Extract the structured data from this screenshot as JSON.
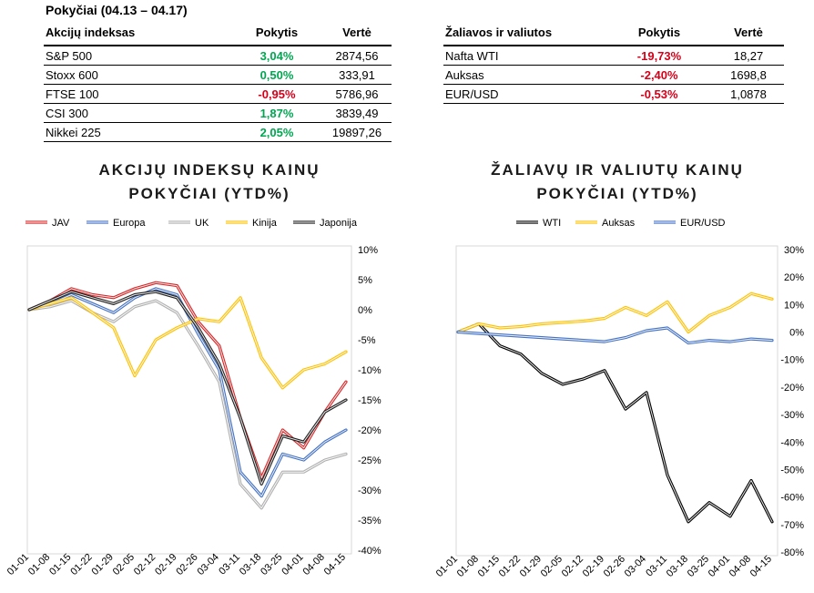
{
  "heading": "Pokyčiai (04.13 – 04.17)",
  "equity_table": {
    "headers": [
      "Akcijų indeksas",
      "Pokytis",
      "Vertė"
    ],
    "rows": [
      {
        "name": "S&P 500",
        "change": "3,04%",
        "value": "2874,56",
        "sign": "pos"
      },
      {
        "name": "Stoxx 600",
        "change": "0,50%",
        "value": "333,91",
        "sign": "pos"
      },
      {
        "name": "FTSE 100",
        "change": "-0,95%",
        "value": "5786,96",
        "sign": "neg"
      },
      {
        "name": "CSI 300",
        "change": "1,87%",
        "value": "3839,49",
        "sign": "pos"
      },
      {
        "name": "Nikkei 225",
        "change": "2,05%",
        "value": "19897,26",
        "sign": "pos"
      }
    ]
  },
  "commodity_table": {
    "headers": [
      "Žaliavos ir valiutos",
      "Pokytis",
      "Vertė"
    ],
    "rows": [
      {
        "name": "Nafta WTI",
        "change": "-19,73%",
        "value": "18,27",
        "sign": "neg"
      },
      {
        "name": "Auksas",
        "change": "-2,40%",
        "value": "1698,8",
        "sign": "neg"
      },
      {
        "name": "EUR/USD",
        "change": "-0,53%",
        "value": "1,0878",
        "sign": "neg"
      }
    ]
  },
  "colors": {
    "positive": "#00a651",
    "negative": "#d4001a"
  },
  "chart_data": [
    {
      "type": "line",
      "title": "AKCIJŲ INDEKSŲ KAINŲ POKYČIAI (YTD%)",
      "title_line1": "AKCIJŲ INDEKSŲ KAINŲ",
      "title_line2": "POKYČIAI (YTD%)",
      "x": [
        "01-01",
        "01-08",
        "01-15",
        "01-22",
        "01-29",
        "02-05",
        "02-12",
        "02-19",
        "02-26",
        "03-04",
        "03-11",
        "03-18",
        "03-25",
        "04-01",
        "04-08",
        "04-15"
      ],
      "ylim": [
        -40,
        10
      ],
      "yticks": [
        "10%",
        "5%",
        "0%",
        "-5%",
        "-10%",
        "-15%",
        "-20%",
        "-25%",
        "-30%",
        "-35%",
        "-40%"
      ],
      "legend_position": "top",
      "series": [
        {
          "name": "JAV",
          "color": "#d62728",
          "values": [
            0,
            1.5,
            3.5,
            2.5,
            2,
            3.5,
            4.5,
            4,
            -2,
            -6,
            -18,
            -28,
            -20,
            -23,
            -17,
            -12
          ]
        },
        {
          "name": "Europa",
          "color": "#4472c4",
          "values": [
            0,
            1,
            2.5,
            1,
            -0.5,
            2,
            3.5,
            2.5,
            -4,
            -10,
            -27,
            -31,
            -24,
            -25,
            -22,
            -20
          ]
        },
        {
          "name": "UK",
          "color": "#b0b0b0",
          "values": [
            0,
            0.5,
            1.5,
            -0.5,
            -2,
            0.5,
            1.5,
            -0.5,
            -6,
            -12,
            -29,
            -33,
            -27,
            -27,
            -25,
            -24
          ]
        },
        {
          "name": "Kinija",
          "color": "#ffc000",
          "values": [
            0,
            1,
            2,
            -0.5,
            -3,
            -11,
            -5,
            -3,
            -1.5,
            -2,
            2,
            -8,
            -13,
            -10,
            -9,
            -7
          ]
        },
        {
          "name": "Japonija",
          "color": "#222222",
          "values": [
            0,
            1.5,
            3,
            2,
            1,
            2.5,
            3,
            2,
            -3,
            -9,
            -18,
            -29,
            -21,
            -22,
            -17,
            -15
          ]
        }
      ]
    },
    {
      "type": "line",
      "title": "ŽALIAVŲ IR VALIUTŲ KAINŲ POKYČIAI (YTD%)",
      "title_line1": "ŽALIAVŲ IR VALIUTŲ KAINŲ",
      "title_line2": "POKYČIAI (YTD%)",
      "x": [
        "01-01",
        "01-08",
        "01-15",
        "01-22",
        "01-29",
        "02-05",
        "02-12",
        "02-19",
        "02-26",
        "03-04",
        "03-11",
        "03-18",
        "03-25",
        "04-01",
        "04-08",
        "04-15"
      ],
      "ylim": [
        -80,
        30
      ],
      "yticks": [
        "30%",
        "20%",
        "10%",
        "0%",
        "-10%",
        "-20%",
        "-30%",
        "-40%",
        "-50%",
        "-60%",
        "-70%",
        "-80%"
      ],
      "legend_position": "top",
      "series": [
        {
          "name": "WTI",
          "color": "#000000",
          "values": [
            0,
            3,
            -5,
            -8,
            -15,
            -19,
            -17,
            -14,
            -28,
            -22,
            -52,
            -69,
            -62,
            -67,
            -54,
            -69
          ]
        },
        {
          "name": "Auksas",
          "color": "#ffc000",
          "values": [
            0,
            3,
            1.5,
            2,
            3,
            3.5,
            4,
            5,
            9,
            6,
            11,
            0,
            6,
            9,
            14,
            12
          ]
        },
        {
          "name": "EUR/USD",
          "color": "#4472c4",
          "values": [
            0,
            -0.5,
            -1,
            -1.5,
            -2,
            -2.5,
            -3,
            -3.5,
            -2,
            0.5,
            1.5,
            -4,
            -3,
            -3.5,
            -2.5,
            -3
          ]
        }
      ]
    }
  ]
}
